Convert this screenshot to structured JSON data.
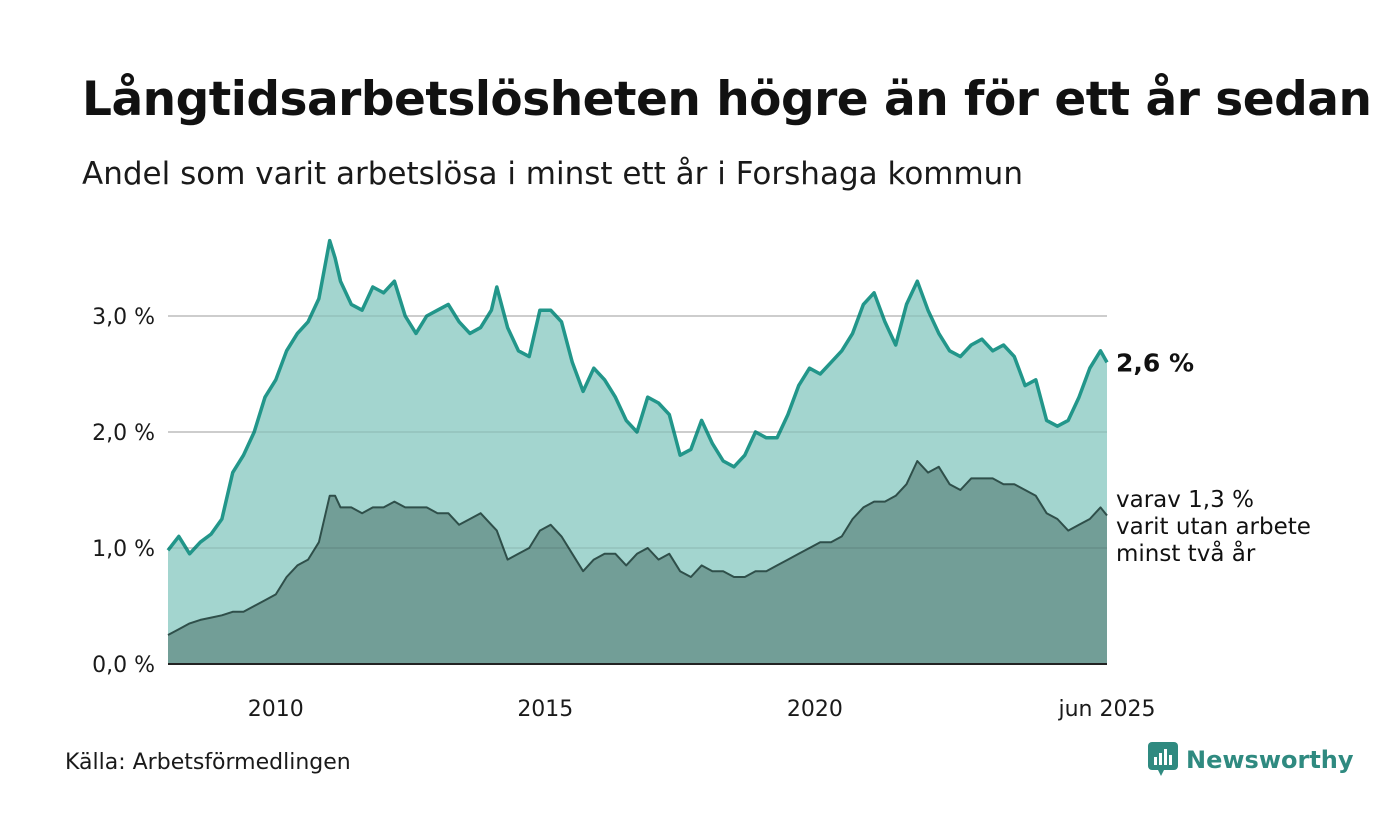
{
  "header": {
    "title": "Långtidsarbetslösheten högre än för ett år sedan",
    "subtitle": "Andel som varit arbetslösa i minst ett år i Forshaga kommun"
  },
  "footer": {
    "source": "Källa: Arbetsförmedlingen",
    "brand": "Newsworthy",
    "brand_icon": "bar-chart-bubble-icon"
  },
  "colors": {
    "series1_line": "#22968a",
    "series1_fill": "#a3d5cf",
    "series2_line": "#2f4f4a",
    "series2_fill": "#729e97",
    "grid": "#dddddd",
    "axis": "#222222",
    "brand": "#2f8a80"
  },
  "chart_data": {
    "type": "area",
    "grid": true,
    "y_ticks": [
      {
        "value": 0,
        "label": "0,0 %"
      },
      {
        "value": 1,
        "label": "1,0 %"
      },
      {
        "value": 2,
        "label": "2,0 %"
      },
      {
        "value": 3,
        "label": "3,0 %"
      }
    ],
    "x_ticks": [
      {
        "value": 2010.0,
        "label": "2010"
      },
      {
        "value": 2015.0,
        "label": "2015"
      },
      {
        "value": 2020.0,
        "label": "2020"
      },
      {
        "value": 2025.42,
        "label": "jun 2025"
      }
    ],
    "xlim": [
      2008.0,
      2025.42
    ],
    "ylim": [
      0,
      3.8
    ],
    "series": [
      {
        "label": "2,6 %",
        "x": [
          2008.0,
          2008.2,
          2008.4,
          2008.6,
          2008.8,
          2009.0,
          2009.2,
          2009.4,
          2009.6,
          2009.8,
          2010.0,
          2010.2,
          2010.4,
          2010.6,
          2010.8,
          2011.0,
          2011.1,
          2011.2,
          2011.4,
          2011.6,
          2011.8,
          2012.0,
          2012.2,
          2012.4,
          2012.6,
          2012.8,
          2013.0,
          2013.2,
          2013.4,
          2013.6,
          2013.8,
          2014.0,
          2014.1,
          2014.3,
          2014.5,
          2014.7,
          2014.9,
          2015.1,
          2015.3,
          2015.5,
          2015.7,
          2015.9,
          2016.1,
          2016.3,
          2016.5,
          2016.7,
          2016.9,
          2017.1,
          2017.3,
          2017.5,
          2017.7,
          2017.9,
          2018.1,
          2018.3,
          2018.5,
          2018.7,
          2018.9,
          2019.1,
          2019.3,
          2019.5,
          2019.7,
          2019.9,
          2020.1,
          2020.3,
          2020.5,
          2020.7,
          2020.9,
          2021.1,
          2021.3,
          2021.5,
          2021.7,
          2021.9,
          2022.1,
          2022.3,
          2022.5,
          2022.7,
          2022.9,
          2023.1,
          2023.3,
          2023.5,
          2023.7,
          2023.9,
          2024.1,
          2024.3,
          2024.5,
          2024.7,
          2024.9,
          2025.1,
          2025.3,
          2025.42
        ],
        "values": [
          0.98,
          1.1,
          0.95,
          1.05,
          1.12,
          1.25,
          1.65,
          1.8,
          2.0,
          2.3,
          2.45,
          2.7,
          2.85,
          2.95,
          3.15,
          3.65,
          3.5,
          3.3,
          3.1,
          3.05,
          3.25,
          3.2,
          3.3,
          3.0,
          2.85,
          3.0,
          3.05,
          3.1,
          2.95,
          2.85,
          2.9,
          3.05,
          3.25,
          2.9,
          2.7,
          2.65,
          3.05,
          3.05,
          2.95,
          2.6,
          2.35,
          2.55,
          2.45,
          2.3,
          2.1,
          2.0,
          2.3,
          2.25,
          2.15,
          1.8,
          1.85,
          2.1,
          1.9,
          1.75,
          1.7,
          1.8,
          2.0,
          1.95,
          1.95,
          2.15,
          2.4,
          2.55,
          2.5,
          2.6,
          2.7,
          2.85,
          3.1,
          3.2,
          2.95,
          2.75,
          3.1,
          3.3,
          3.05,
          2.85,
          2.7,
          2.65,
          2.75,
          2.8,
          2.7,
          2.75,
          2.65,
          2.4,
          2.45,
          2.1,
          2.05,
          2.1,
          2.3,
          2.55,
          2.7,
          2.6
        ]
      },
      {
        "label": "varav 1,3 %",
        "label_lines": [
          "varav 1,3 %",
          "varit utan arbete",
          "minst två år"
        ],
        "x": [
          2008.0,
          2008.2,
          2008.4,
          2008.6,
          2008.8,
          2009.0,
          2009.2,
          2009.4,
          2009.6,
          2009.8,
          2010.0,
          2010.2,
          2010.4,
          2010.6,
          2010.8,
          2011.0,
          2011.1,
          2011.2,
          2011.4,
          2011.6,
          2011.8,
          2012.0,
          2012.2,
          2012.4,
          2012.6,
          2012.8,
          2013.0,
          2013.2,
          2013.4,
          2013.6,
          2013.8,
          2014.0,
          2014.1,
          2014.3,
          2014.5,
          2014.7,
          2014.9,
          2015.1,
          2015.3,
          2015.5,
          2015.7,
          2015.9,
          2016.1,
          2016.3,
          2016.5,
          2016.7,
          2016.9,
          2017.1,
          2017.3,
          2017.5,
          2017.7,
          2017.9,
          2018.1,
          2018.3,
          2018.5,
          2018.7,
          2018.9,
          2019.1,
          2019.3,
          2019.5,
          2019.7,
          2019.9,
          2020.1,
          2020.3,
          2020.5,
          2020.7,
          2020.9,
          2021.1,
          2021.3,
          2021.5,
          2021.7,
          2021.9,
          2022.1,
          2022.3,
          2022.5,
          2022.7,
          2022.9,
          2023.1,
          2023.3,
          2023.5,
          2023.7,
          2023.9,
          2024.1,
          2024.3,
          2024.5,
          2024.7,
          2024.9,
          2025.1,
          2025.3,
          2025.42
        ],
        "values": [
          0.25,
          0.3,
          0.35,
          0.38,
          0.4,
          0.42,
          0.45,
          0.45,
          0.5,
          0.55,
          0.6,
          0.75,
          0.85,
          0.9,
          1.05,
          1.45,
          1.45,
          1.35,
          1.35,
          1.3,
          1.35,
          1.35,
          1.4,
          1.35,
          1.35,
          1.35,
          1.3,
          1.3,
          1.2,
          1.25,
          1.3,
          1.2,
          1.15,
          0.9,
          0.95,
          1.0,
          1.15,
          1.2,
          1.1,
          0.95,
          0.8,
          0.9,
          0.95,
          0.95,
          0.85,
          0.95,
          1.0,
          0.9,
          0.95,
          0.8,
          0.75,
          0.85,
          0.8,
          0.8,
          0.75,
          0.75,
          0.8,
          0.8,
          0.85,
          0.9,
          0.95,
          1.0,
          1.05,
          1.05,
          1.1,
          1.25,
          1.35,
          1.4,
          1.4,
          1.45,
          1.55,
          1.75,
          1.65,
          1.7,
          1.55,
          1.5,
          1.6,
          1.6,
          1.6,
          1.55,
          1.55,
          1.5,
          1.45,
          1.3,
          1.25,
          1.15,
          1.2,
          1.25,
          1.35,
          1.28
        ]
      }
    ]
  }
}
